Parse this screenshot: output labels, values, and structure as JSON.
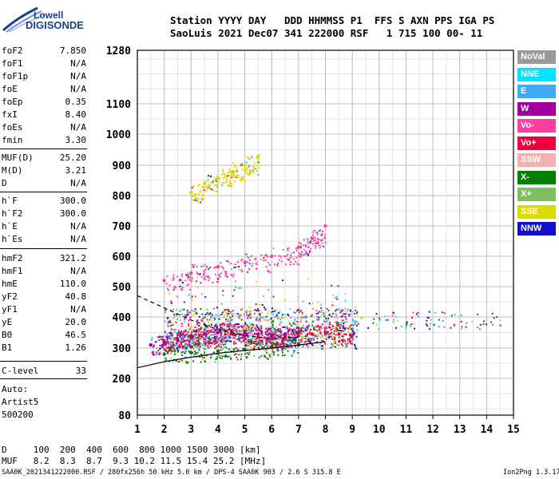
{
  "logo": {
    "line1": "Lowell",
    "line2": "DIGISONDE"
  },
  "header": {
    "labels": "Station YYYY DAY   DDD HHMMSS P1  FFS S AXN PPS IGA PS",
    "values": "SaoLuis 2021 Dec07 341 222000 RSF   1 715 100 00- 11"
  },
  "params": [
    {
      "name": "foF2",
      "value": "7.850"
    },
    {
      "name": "foF1",
      "value": "N/A"
    },
    {
      "name": "foF1p",
      "value": "N/A"
    },
    {
      "name": "foE",
      "value": "N/A"
    },
    {
      "name": "foEp",
      "value": "0.35"
    },
    {
      "name": "fxI",
      "value": "8.40"
    },
    {
      "name": "foEs",
      "value": "N/A"
    },
    {
      "name": "fmin",
      "value": "3.30"
    },
    {
      "name": "MUF(D)",
      "value": "25.20"
    },
    {
      "name": "M(D)",
      "value": "3.21"
    },
    {
      "name": "D",
      "value": "N/A"
    },
    {
      "name": "h`F",
      "value": "300.0"
    },
    {
      "name": "h`F2",
      "value": "300.0"
    },
    {
      "name": "h`E",
      "value": "N/A"
    },
    {
      "name": "h`Es",
      "value": "N/A"
    },
    {
      "name": "hmF2",
      "value": "321.2"
    },
    {
      "name": "hmF1",
      "value": "N/A"
    },
    {
      "name": "hmE",
      "value": "110.0"
    },
    {
      "name": "yF2",
      "value": "40.8"
    },
    {
      "name": "yF1",
      "value": "N/A"
    },
    {
      "name": "yE",
      "value": "20.0"
    },
    {
      "name": "B0",
      "value": "46.5"
    },
    {
      "name": "B1",
      "value": "1.26"
    },
    {
      "name": "C-level",
      "value": "33"
    }
  ],
  "auto": {
    "line1": "Auto:",
    "line2": "Artist5",
    "line3": "500200"
  },
  "legend": [
    {
      "label": "NoVal",
      "color": "#999999"
    },
    {
      "label": "NNE",
      "color": "#00e5ff"
    },
    {
      "label": "E",
      "color": "#3fa9f5"
    },
    {
      "label": "W",
      "color": "#a000a0"
    },
    {
      "label": "Vo-",
      "color": "#ff3f9f"
    },
    {
      "label": "Vo+",
      "color": "#f0003c"
    },
    {
      "label": "SSW",
      "color": "#f4b0b0"
    },
    {
      "label": "X-",
      "color": "#008000"
    },
    {
      "label": "X+",
      "color": "#7fbf5f"
    },
    {
      "label": "SSE",
      "color": "#dcdc00"
    },
    {
      "label": "NNW",
      "color": "#1010c8"
    }
  ],
  "footer": {
    "d_row": "D     100  200  400  600  800 1000 1500 3000 [km]",
    "muf_row": "MUF   8.2  8.3  8.7  9.3 10.2 11.5 15.4 25.2 [MHz]",
    "file_info": "SAA0K_2021341222000.RSF / 280fx256h 50 kHz 5.0 km / DPS-4 SAA0K 903 / 2.6 S 315.8 E",
    "version": "Ion2Png 1.3.17"
  },
  "chart_data": {
    "type": "scatter",
    "x_ticks": [
      1,
      2,
      3,
      4,
      5,
      6,
      7,
      8,
      9,
      10,
      11,
      12,
      13,
      14,
      15
    ],
    "y_ticks": [
      80,
      200,
      300,
      400,
      500,
      600,
      700,
      800,
      900,
      1000,
      1100,
      1280
    ],
    "xlim": [
      1,
      15
    ],
    "ylim": [
      80,
      1280
    ],
    "grid": true,
    "legend_position": "right",
    "series": [
      {
        "name": "Vo+",
        "x": [
          2.0,
          2.5,
          3.0,
          3.5,
          4.0,
          4.5,
          5.0,
          5.5,
          6.0,
          6.5,
          7.0,
          7.5,
          8.0,
          8.5,
          9.0
        ],
        "y": [
          320,
          330,
          340,
          345,
          350,
          345,
          340,
          335,
          330,
          335,
          340,
          345,
          350,
          345,
          340
        ]
      },
      {
        "name": "W",
        "x": [
          1.5,
          2.0,
          2.5,
          3.0,
          3.5,
          4.0,
          4.5,
          5.0,
          5.5,
          6.0,
          6.5,
          7.0
        ],
        "y": [
          310,
          315,
          325,
          335,
          345,
          350,
          355,
          350,
          345,
          340,
          345,
          350
        ]
      },
      {
        "name": "Vo-",
        "x": [
          2.0,
          3.0,
          4.0,
          5.0,
          6.0,
          7.0,
          7.5,
          8.0
        ],
        "y": [
          520,
          545,
          565,
          580,
          600,
          630,
          660,
          700
        ]
      },
      {
        "name": "SSE",
        "x": [
          3.0,
          3.5,
          4.0,
          4.5,
          5.0,
          5.5
        ],
        "y": [
          810,
          840,
          860,
          880,
          900,
          930
        ]
      },
      {
        "name": "X-",
        "x": [
          2.0,
          3.0,
          4.0,
          5.0,
          6.0,
          7.0
        ],
        "y": [
          280,
          285,
          290,
          295,
          305,
          310
        ]
      }
    ]
  }
}
